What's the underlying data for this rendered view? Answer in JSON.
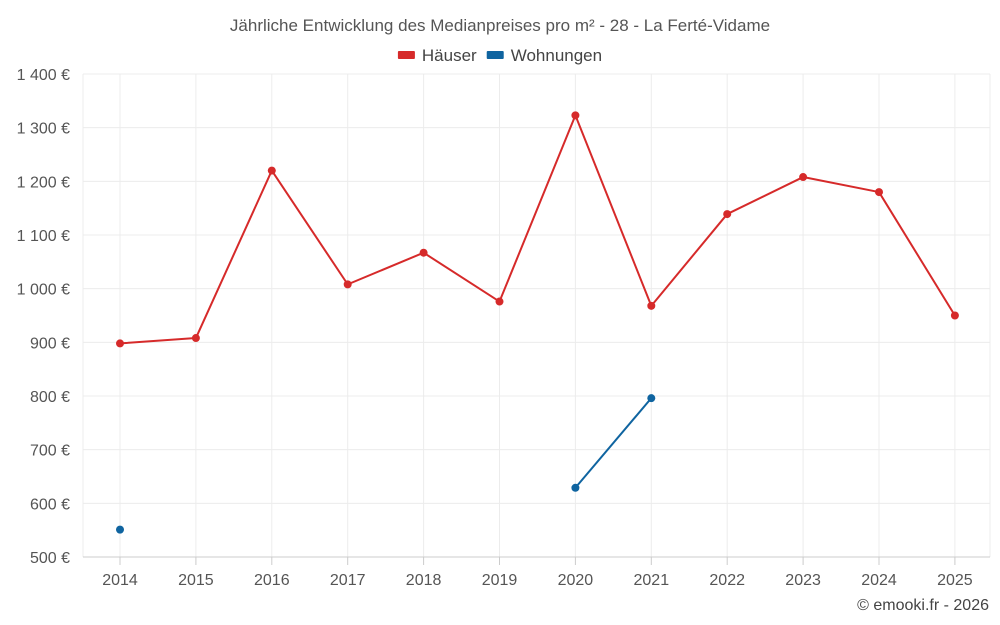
{
  "chart_data": {
    "type": "line",
    "title": "Jährliche Entwicklung des Medianpreises pro m² - 28 - La Ferté-Vidame",
    "categories": [
      "2014",
      "2015",
      "2016",
      "2017",
      "2018",
      "2019",
      "2020",
      "2021",
      "2022",
      "2023",
      "2024",
      "2025"
    ],
    "series": [
      {
        "name": "Häuser",
        "color": "#d62a2a",
        "values": [
          898,
          908,
          1220,
          1008,
          1067,
          976,
          1323,
          968,
          1139,
          1208,
          1180,
          950
        ]
      },
      {
        "name": "Wohnungen",
        "color": "#0f64a0",
        "values": [
          551,
          null,
          null,
          null,
          null,
          null,
          629,
          796,
          null,
          null,
          null,
          null
        ]
      }
    ],
    "ylim": [
      500,
      1400
    ],
    "yticks": [
      500,
      600,
      700,
      800,
      900,
      1000,
      1100,
      1200,
      1300,
      1400
    ],
    "ytick_labels": [
      "500 €",
      "600 €",
      "700 €",
      "800 €",
      "900 €",
      "1 000 €",
      "1 100 €",
      "1 200 €",
      "1 300 €",
      "1 400 €"
    ],
    "xlabel": "",
    "ylabel": "",
    "grid": true,
    "legend_position": "top-center"
  },
  "credit": "© emooki.fr - 2026"
}
